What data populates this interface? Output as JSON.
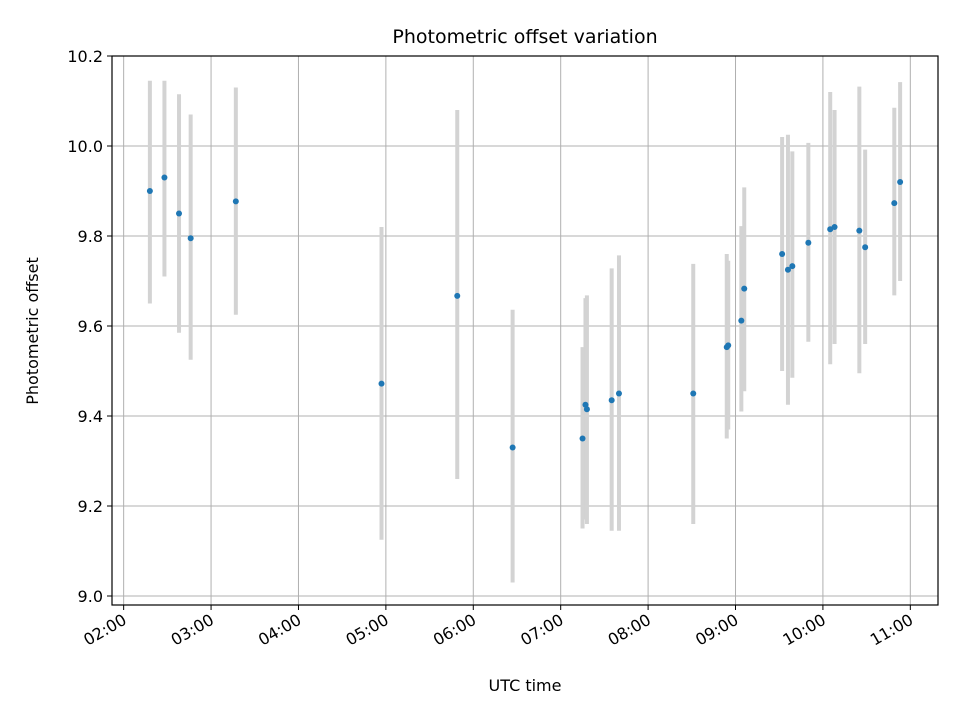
{
  "chart_data": {
    "type": "scatter",
    "title": "Photometric offset variation",
    "xlabel": "UTC time",
    "ylabel": "Photometric offset",
    "x_unit": "hour",
    "xlim": [
      "01:52",
      "11:19"
    ],
    "ylim": [
      8.98,
      10.2
    ],
    "x_ticks": [
      "02:00",
      "03:00",
      "04:00",
      "05:00",
      "06:00",
      "07:00",
      "08:00",
      "09:00",
      "10:00",
      "11:00"
    ],
    "y_ticks": [
      "9.0",
      "9.2",
      "9.4",
      "9.6",
      "9.8",
      "10.0",
      "10.2"
    ],
    "grid": true,
    "marker_color": "#1f77b4",
    "errorbar_color": "#d3d3d3",
    "points": [
      {
        "x": "02:18",
        "y": 9.9,
        "yerr_low": 9.65,
        "yerr_high": 10.145
      },
      {
        "x": "02:28",
        "y": 9.93,
        "yerr_low": 9.71,
        "yerr_high": 10.145
      },
      {
        "x": "02:38",
        "y": 9.85,
        "yerr_low": 9.585,
        "yerr_high": 10.115
      },
      {
        "x": "02:46",
        "y": 9.795,
        "yerr_low": 9.525,
        "yerr_high": 10.07
      },
      {
        "x": "03:17",
        "y": 9.877,
        "yerr_low": 9.625,
        "yerr_high": 10.13
      },
      {
        "x": "04:57",
        "y": 9.472,
        "yerr_low": 9.125,
        "yerr_high": 9.82
      },
      {
        "x": "05:49",
        "y": 9.667,
        "yerr_low": 9.26,
        "yerr_high": 10.08
      },
      {
        "x": "06:27",
        "y": 9.33,
        "yerr_low": 9.03,
        "yerr_high": 9.636
      },
      {
        "x": "07:15",
        "y": 9.35,
        "yerr_low": 9.15,
        "yerr_high": 9.553
      },
      {
        "x": "07:17",
        "y": 9.425,
        "yerr_low": 9.17,
        "yerr_high": 9.662
      },
      {
        "x": "07:18",
        "y": 9.415,
        "yerr_low": 9.16,
        "yerr_high": 9.668
      },
      {
        "x": "07:35",
        "y": 9.435,
        "yerr_low": 9.145,
        "yerr_high": 9.728
      },
      {
        "x": "07:40",
        "y": 9.45,
        "yerr_low": 9.145,
        "yerr_high": 9.757
      },
      {
        "x": "08:31",
        "y": 9.45,
        "yerr_low": 9.16,
        "yerr_high": 9.738
      },
      {
        "x": "08:54",
        "y": 9.553,
        "yerr_low": 9.35,
        "yerr_high": 9.76
      },
      {
        "x": "08:55",
        "y": 9.557,
        "yerr_low": 9.37,
        "yerr_high": 9.745
      },
      {
        "x": "09:04",
        "y": 9.612,
        "yerr_low": 9.41,
        "yerr_high": 9.822
      },
      {
        "x": "09:06",
        "y": 9.683,
        "yerr_low": 9.455,
        "yerr_high": 9.908
      },
      {
        "x": "09:32",
        "y": 9.76,
        "yerr_low": 9.5,
        "yerr_high": 10.02
      },
      {
        "x": "09:36",
        "y": 9.725,
        "yerr_low": 9.425,
        "yerr_high": 10.025
      },
      {
        "x": "09:39",
        "y": 9.733,
        "yerr_low": 9.485,
        "yerr_high": 9.988
      },
      {
        "x": "09:50",
        "y": 9.785,
        "yerr_low": 9.565,
        "yerr_high": 10.007
      },
      {
        "x": "10:05",
        "y": 9.815,
        "yerr_low": 9.515,
        "yerr_high": 10.12
      },
      {
        "x": "10:08",
        "y": 9.82,
        "yerr_low": 9.56,
        "yerr_high": 10.08
      },
      {
        "x": "10:25",
        "y": 9.812,
        "yerr_low": 9.495,
        "yerr_high": 10.132
      },
      {
        "x": "10:29",
        "y": 9.775,
        "yerr_low": 9.56,
        "yerr_high": 9.992
      },
      {
        "x": "10:49",
        "y": 9.873,
        "yerr_low": 9.668,
        "yerr_high": 10.085
      },
      {
        "x": "10:53",
        "y": 9.92,
        "yerr_low": 9.7,
        "yerr_high": 10.142
      }
    ]
  }
}
